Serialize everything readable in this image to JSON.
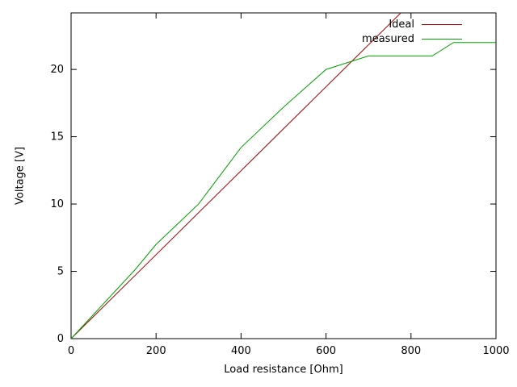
{
  "chart_data": {
    "type": "line",
    "title": "",
    "xlabel": "Load resistance [Ohm]",
    "ylabel": "Voltage [V]",
    "xlim": [
      0,
      1000
    ],
    "ylim": [
      0,
      24.2
    ],
    "xticks": [
      0,
      200,
      400,
      600,
      800,
      1000
    ],
    "yticks": [
      0,
      5,
      10,
      15,
      20
    ],
    "grid": false,
    "legend_position": "top-right-inside",
    "series": [
      {
        "name": "Ideal",
        "color": "#a40000",
        "x": [
          0,
          776
        ],
        "y": [
          0,
          24.2
        ]
      },
      {
        "name": "measured",
        "color": "#00a000",
        "x": [
          0,
          50,
          100,
          150,
          200,
          300,
          400,
          500,
          600,
          650,
          700,
          850,
          900,
          1000
        ],
        "y": [
          0,
          1.7,
          3.4,
          5.1,
          7.0,
          10.0,
          14.2,
          17.2,
          20.0,
          20.5,
          21.0,
          21.0,
          22.0,
          22.0
        ]
      }
    ]
  }
}
